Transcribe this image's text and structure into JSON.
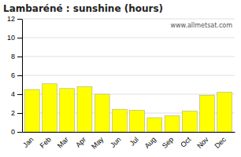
{
  "chart_data": {
    "type": "bar",
    "title": "Lambaréné : sunshine (hours)",
    "categories": [
      "Jan",
      "Feb",
      "Mar",
      "Apr",
      "May",
      "Jun",
      "Jul",
      "Aug",
      "Sep",
      "Oct",
      "Nov",
      "Dec"
    ],
    "values": [
      4.5,
      5.1,
      4.6,
      4.8,
      4.0,
      2.4,
      2.3,
      1.5,
      1.7,
      2.2,
      3.9,
      4.2
    ],
    "color": "#ffff00",
    "ylim": [
      0,
      12
    ],
    "yticks": [
      0,
      2,
      4,
      6,
      8,
      10,
      12
    ],
    "grid": true,
    "annotations": [
      "www.allmetsat.com"
    ]
  }
}
